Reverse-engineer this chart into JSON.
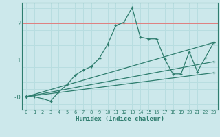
{
  "xlabel": "Humidex (Indice chaleur)",
  "background_color": "#cce8eb",
  "grid_color_white": "#b8dde0",
  "grid_color_red": "#e08080",
  "line_color": "#2e7d6e",
  "xlim": [
    -0.5,
    23.5
  ],
  "ylim": [
    -0.35,
    2.55
  ],
  "yticks": [
    0,
    1,
    2
  ],
  "ytick_labels": [
    "-0",
    "1",
    "2"
  ],
  "xticks": [
    0,
    1,
    2,
    3,
    4,
    5,
    6,
    7,
    8,
    9,
    10,
    11,
    12,
    13,
    14,
    15,
    16,
    17,
    18,
    19,
    20,
    21,
    22,
    23
  ],
  "lines": [
    {
      "x": [
        0,
        1,
        2,
        3,
        4,
        5,
        6,
        7,
        8,
        9,
        10,
        11,
        12,
        13,
        14,
        15,
        16,
        17,
        18,
        19,
        20,
        21,
        22,
        23
      ],
      "y": [
        0.0,
        0.0,
        -0.05,
        -0.12,
        0.13,
        0.32,
        0.58,
        0.72,
        0.82,
        1.05,
        1.42,
        1.93,
        2.02,
        2.42,
        1.62,
        1.57,
        1.57,
        1.02,
        0.62,
        0.62,
        1.22,
        0.68,
        1.07,
        1.47
      ]
    },
    {
      "x": [
        0,
        23
      ],
      "y": [
        0.0,
        1.47
      ]
    },
    {
      "x": [
        0,
        23
      ],
      "y": [
        0.0,
        0.95
      ]
    },
    {
      "x": [
        0,
        23
      ],
      "y": [
        0.0,
        0.65
      ]
    }
  ]
}
